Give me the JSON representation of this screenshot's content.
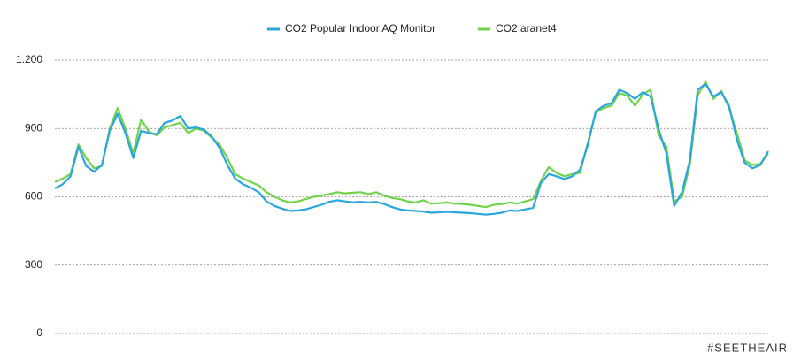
{
  "chart_data": {
    "type": "line",
    "annotations": [
      "#SEETHEAIR"
    ],
    "ylim": [
      0,
      1200
    ],
    "yticks": [
      0,
      300,
      600,
      900,
      {
        "value": 1200,
        "label": "1.200"
      }
    ],
    "grid": true,
    "legend": "top",
    "series": [
      {
        "name": "CO2 Popular Indoor AQ Monitor",
        "color": "#2aa6df",
        "values": [
          637,
          655,
          690,
          820,
          735,
          710,
          740,
          890,
          965,
          880,
          770,
          890,
          880,
          875,
          925,
          935,
          955,
          900,
          905,
          895,
          865,
          815,
          740,
          680,
          655,
          640,
          620,
          580,
          560,
          548,
          538,
          540,
          545,
          555,
          565,
          578,
          585,
          580,
          576,
          578,
          575,
          578,
          568,
          555,
          545,
          540,
          538,
          535,
          530,
          532,
          534,
          532,
          530,
          528,
          525,
          522,
          525,
          530,
          540,
          538,
          545,
          552,
          660,
          700,
          690,
          678,
          690,
          720,
          830,
          975,
          1000,
          1010,
          1070,
          1055,
          1030,
          1060,
          1040,
          900,
          790,
          560,
          620,
          760,
          1070,
          1095,
          1040,
          1060,
          1000,
          850,
          750,
          725,
          740,
          800
        ]
      },
      {
        "name": "CO2 aranet4",
        "color": "#6fd44a",
        "values": [
          665,
          680,
          700,
          830,
          770,
          725,
          735,
          900,
          990,
          900,
          790,
          940,
          885,
          870,
          905,
          915,
          925,
          880,
          900,
          890,
          860,
          830,
          770,
          700,
          680,
          665,
          650,
          620,
          600,
          585,
          575,
          580,
          590,
          600,
          605,
          612,
          620,
          615,
          618,
          620,
          612,
          620,
          605,
          595,
          590,
          580,
          575,
          585,
          570,
          572,
          575,
          570,
          568,
          565,
          560,
          555,
          565,
          568,
          575,
          570,
          580,
          590,
          670,
          730,
          705,
          690,
          700,
          705,
          840,
          970,
          990,
          1000,
          1055,
          1045,
          1000,
          1050,
          1070,
          870,
          820,
          580,
          600,
          740,
          1045,
          1105,
          1030,
          1065,
          990,
          880,
          760,
          740,
          745,
          790
        ]
      }
    ]
  }
}
